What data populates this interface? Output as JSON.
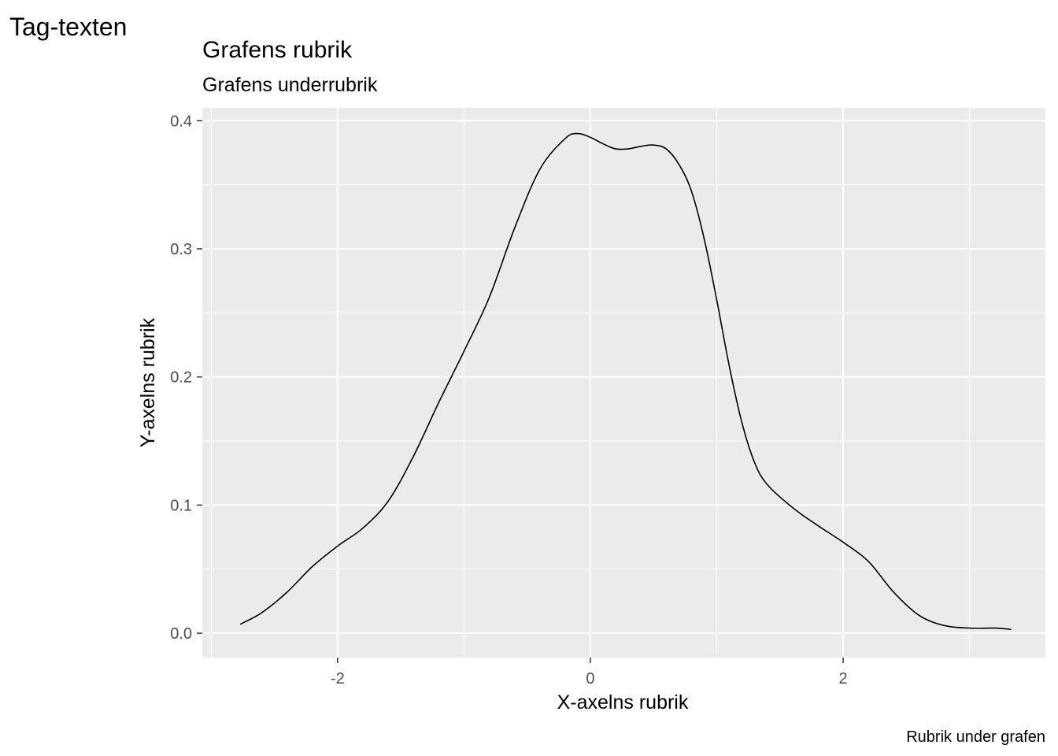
{
  "chart_data": {
    "type": "line",
    "tag": "Tag-texten",
    "title": "Grafens rubrik",
    "subtitle": "Grafens underrubrik",
    "xlabel": "X-axelns rubrik",
    "ylabel": "Y-axelns rubrik",
    "caption": "Rubrik under grafen",
    "xlim": [
      -3.07,
      3.6
    ],
    "ylim": [
      -0.019,
      0.41
    ],
    "x_ticks": [
      -2,
      0,
      2
    ],
    "x_tick_labels": [
      "-2",
      "0",
      "2"
    ],
    "y_ticks": [
      0.0,
      0.1,
      0.2,
      0.3,
      0.4
    ],
    "y_tick_labels": [
      "0.0",
      "0.1",
      "0.2",
      "0.3",
      "0.4"
    ],
    "x_minor": [
      -3,
      -1,
      1,
      3
    ],
    "y_minor": [
      0.05,
      0.15,
      0.25,
      0.35
    ],
    "grid": true,
    "background": "#ebebeb",
    "grid_color": "#ffffff",
    "line_color": "#000000",
    "series": [
      {
        "x": [
          -2.77,
          -2.6,
          -2.4,
          -2.2,
          -2.0,
          -1.8,
          -1.6,
          -1.4,
          -1.2,
          -1.0,
          -0.8,
          -0.6,
          -0.4,
          -0.2,
          -0.1,
          0.0,
          0.1,
          0.2,
          0.3,
          0.4,
          0.5,
          0.6,
          0.7,
          0.8,
          0.9,
          1.0,
          1.1,
          1.2,
          1.3,
          1.4,
          1.6,
          1.8,
          2.0,
          2.2,
          2.4,
          2.6,
          2.8,
          3.0,
          3.2,
          3.33
        ],
        "y": [
          0.007,
          0.016,
          0.032,
          0.052,
          0.068,
          0.082,
          0.103,
          0.138,
          0.18,
          0.22,
          0.262,
          0.316,
          0.362,
          0.386,
          0.39,
          0.387,
          0.382,
          0.378,
          0.378,
          0.38,
          0.381,
          0.378,
          0.366,
          0.345,
          0.308,
          0.26,
          0.208,
          0.164,
          0.133,
          0.116,
          0.098,
          0.084,
          0.071,
          0.056,
          0.032,
          0.014,
          0.006,
          0.004,
          0.004,
          0.003
        ]
      }
    ]
  }
}
